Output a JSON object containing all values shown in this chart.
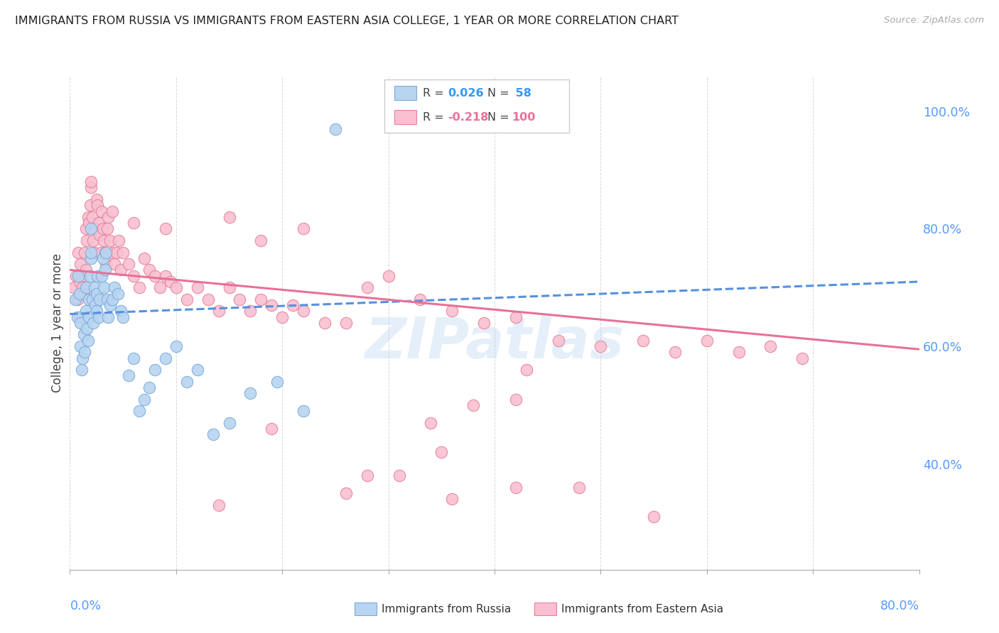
{
  "title": "IMMIGRANTS FROM RUSSIA VS IMMIGRANTS FROM EASTERN ASIA COLLEGE, 1 YEAR OR MORE CORRELATION CHART",
  "source": "Source: ZipAtlas.com",
  "ylabel": "College, 1 year or more",
  "right_yticks": [
    "100.0%",
    "80.0%",
    "60.0%",
    "40.0%"
  ],
  "right_ytick_vals": [
    1.0,
    0.8,
    0.6,
    0.4
  ],
  "xmin": 0.0,
  "xmax": 0.8,
  "ymin": 0.22,
  "ymax": 1.06,
  "watermark": "ZIPatlas",
  "blue_color": "#b8d4f0",
  "blue_edge": "#7aabdc",
  "pink_color": "#f8c0d0",
  "pink_edge": "#e8809a",
  "trend_blue": "#5590e0",
  "trend_pink": "#e8709a",
  "background": "#ffffff",
  "grid_color": "#d8d8d8",
  "label_color": "#5599ff",
  "legend_R1_color": "#3399ff",
  "legend_N1_color": "#3399ff",
  "legend_R2_color": "#e8709a",
  "legend_N2_color": "#e8709a",
  "russia_x": [
    0.005,
    0.007,
    0.008,
    0.009,
    0.01,
    0.01,
    0.011,
    0.012,
    0.013,
    0.014,
    0.015,
    0.015,
    0.016,
    0.017,
    0.018,
    0.018,
    0.019,
    0.02,
    0.02,
    0.02,
    0.021,
    0.022,
    0.023,
    0.024,
    0.025,
    0.025,
    0.026,
    0.027,
    0.028,
    0.03,
    0.031,
    0.032,
    0.033,
    0.034,
    0.035,
    0.036,
    0.038,
    0.04,
    0.042,
    0.045,
    0.048,
    0.05,
    0.055,
    0.06,
    0.065,
    0.07,
    0.075,
    0.08,
    0.09,
    0.1,
    0.11,
    0.12,
    0.135,
    0.15,
    0.17,
    0.195,
    0.22,
    0.25
  ],
  "russia_y": [
    0.68,
    0.65,
    0.72,
    0.69,
    0.6,
    0.64,
    0.56,
    0.58,
    0.62,
    0.59,
    0.7,
    0.66,
    0.63,
    0.61,
    0.65,
    0.68,
    0.72,
    0.75,
    0.76,
    0.8,
    0.68,
    0.64,
    0.7,
    0.67,
    0.66,
    0.69,
    0.72,
    0.65,
    0.68,
    0.72,
    0.75,
    0.7,
    0.73,
    0.76,
    0.68,
    0.65,
    0.67,
    0.68,
    0.7,
    0.69,
    0.66,
    0.65,
    0.55,
    0.58,
    0.49,
    0.51,
    0.53,
    0.56,
    0.58,
    0.6,
    0.54,
    0.56,
    0.45,
    0.47,
    0.52,
    0.54,
    0.49,
    0.97
  ],
  "easternasia_x": [
    0.004,
    0.006,
    0.007,
    0.008,
    0.009,
    0.01,
    0.01,
    0.011,
    0.012,
    0.013,
    0.014,
    0.015,
    0.015,
    0.016,
    0.017,
    0.018,
    0.019,
    0.02,
    0.02,
    0.021,
    0.022,
    0.023,
    0.024,
    0.025,
    0.026,
    0.027,
    0.028,
    0.029,
    0.03,
    0.031,
    0.032,
    0.033,
    0.034,
    0.035,
    0.036,
    0.038,
    0.04,
    0.042,
    0.044,
    0.046,
    0.048,
    0.05,
    0.055,
    0.06,
    0.065,
    0.07,
    0.075,
    0.08,
    0.085,
    0.09,
    0.095,
    0.1,
    0.11,
    0.12,
    0.13,
    0.14,
    0.15,
    0.16,
    0.17,
    0.18,
    0.19,
    0.2,
    0.21,
    0.22,
    0.24,
    0.26,
    0.28,
    0.3,
    0.33,
    0.36,
    0.39,
    0.42,
    0.46,
    0.5,
    0.54,
    0.57,
    0.6,
    0.63,
    0.66,
    0.69,
    0.38,
    0.42,
    0.34,
    0.28,
    0.43,
    0.18,
    0.22,
    0.15,
    0.09,
    0.06,
    0.04,
    0.35,
    0.26,
    0.19,
    0.14,
    0.31,
    0.42,
    0.36,
    0.48,
    0.55
  ],
  "easternasia_y": [
    0.7,
    0.72,
    0.68,
    0.76,
    0.71,
    0.65,
    0.74,
    0.72,
    0.7,
    0.69,
    0.76,
    0.73,
    0.8,
    0.78,
    0.82,
    0.81,
    0.84,
    0.87,
    0.88,
    0.82,
    0.78,
    0.76,
    0.8,
    0.85,
    0.84,
    0.81,
    0.79,
    0.76,
    0.83,
    0.8,
    0.78,
    0.76,
    0.74,
    0.8,
    0.82,
    0.78,
    0.76,
    0.74,
    0.76,
    0.78,
    0.73,
    0.76,
    0.74,
    0.72,
    0.7,
    0.75,
    0.73,
    0.72,
    0.7,
    0.72,
    0.71,
    0.7,
    0.68,
    0.7,
    0.68,
    0.66,
    0.7,
    0.68,
    0.66,
    0.68,
    0.67,
    0.65,
    0.67,
    0.66,
    0.64,
    0.64,
    0.7,
    0.72,
    0.68,
    0.66,
    0.64,
    0.65,
    0.61,
    0.6,
    0.61,
    0.59,
    0.61,
    0.59,
    0.6,
    0.58,
    0.5,
    0.51,
    0.47,
    0.38,
    0.56,
    0.78,
    0.8,
    0.82,
    0.8,
    0.81,
    0.83,
    0.42,
    0.35,
    0.46,
    0.33,
    0.38,
    0.36,
    0.34,
    0.36,
    0.31
  ],
  "blue_trend_x": [
    0.0,
    0.8
  ],
  "blue_trend_y": [
    0.655,
    0.71
  ],
  "pink_trend_x": [
    0.0,
    0.8
  ],
  "pink_trend_y": [
    0.73,
    0.595
  ]
}
